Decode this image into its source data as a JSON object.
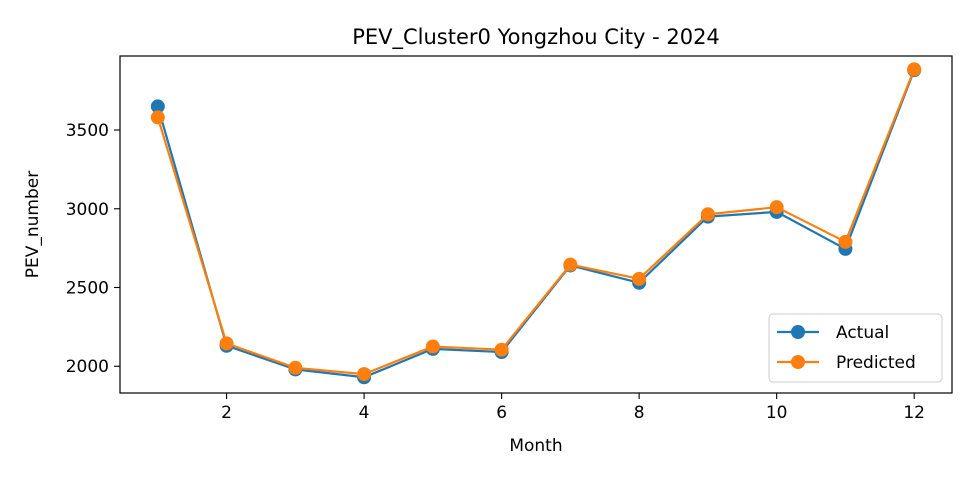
{
  "chart_data": {
    "type": "line",
    "title": "PEV_Cluster0 Yongzhou City - 2024",
    "xlabel": "Month",
    "ylabel": "PEV_number",
    "x": [
      1,
      2,
      3,
      4,
      5,
      6,
      7,
      8,
      9,
      10,
      11,
      12
    ],
    "xlim": [
      0.45,
      12.55
    ],
    "ylim": [
      1830,
      3970
    ],
    "xticks": [
      2,
      4,
      6,
      8,
      10,
      12
    ],
    "yticks": [
      2000,
      2500,
      3000,
      3500
    ],
    "grid": false,
    "legend_position": "lower-right",
    "series": [
      {
        "name": "Actual",
        "color": "#1f77b4",
        "marker": "circle",
        "values": [
          3650,
          2130,
          1980,
          1930,
          2110,
          2090,
          2640,
          2530,
          2950,
          2980,
          2745,
          3880
        ]
      },
      {
        "name": "Predicted",
        "color": "#ff7f0e",
        "marker": "circle",
        "values": [
          3580,
          2145,
          1990,
          1950,
          2125,
          2105,
          2645,
          2555,
          2965,
          3010,
          2790,
          3885
        ]
      }
    ]
  }
}
